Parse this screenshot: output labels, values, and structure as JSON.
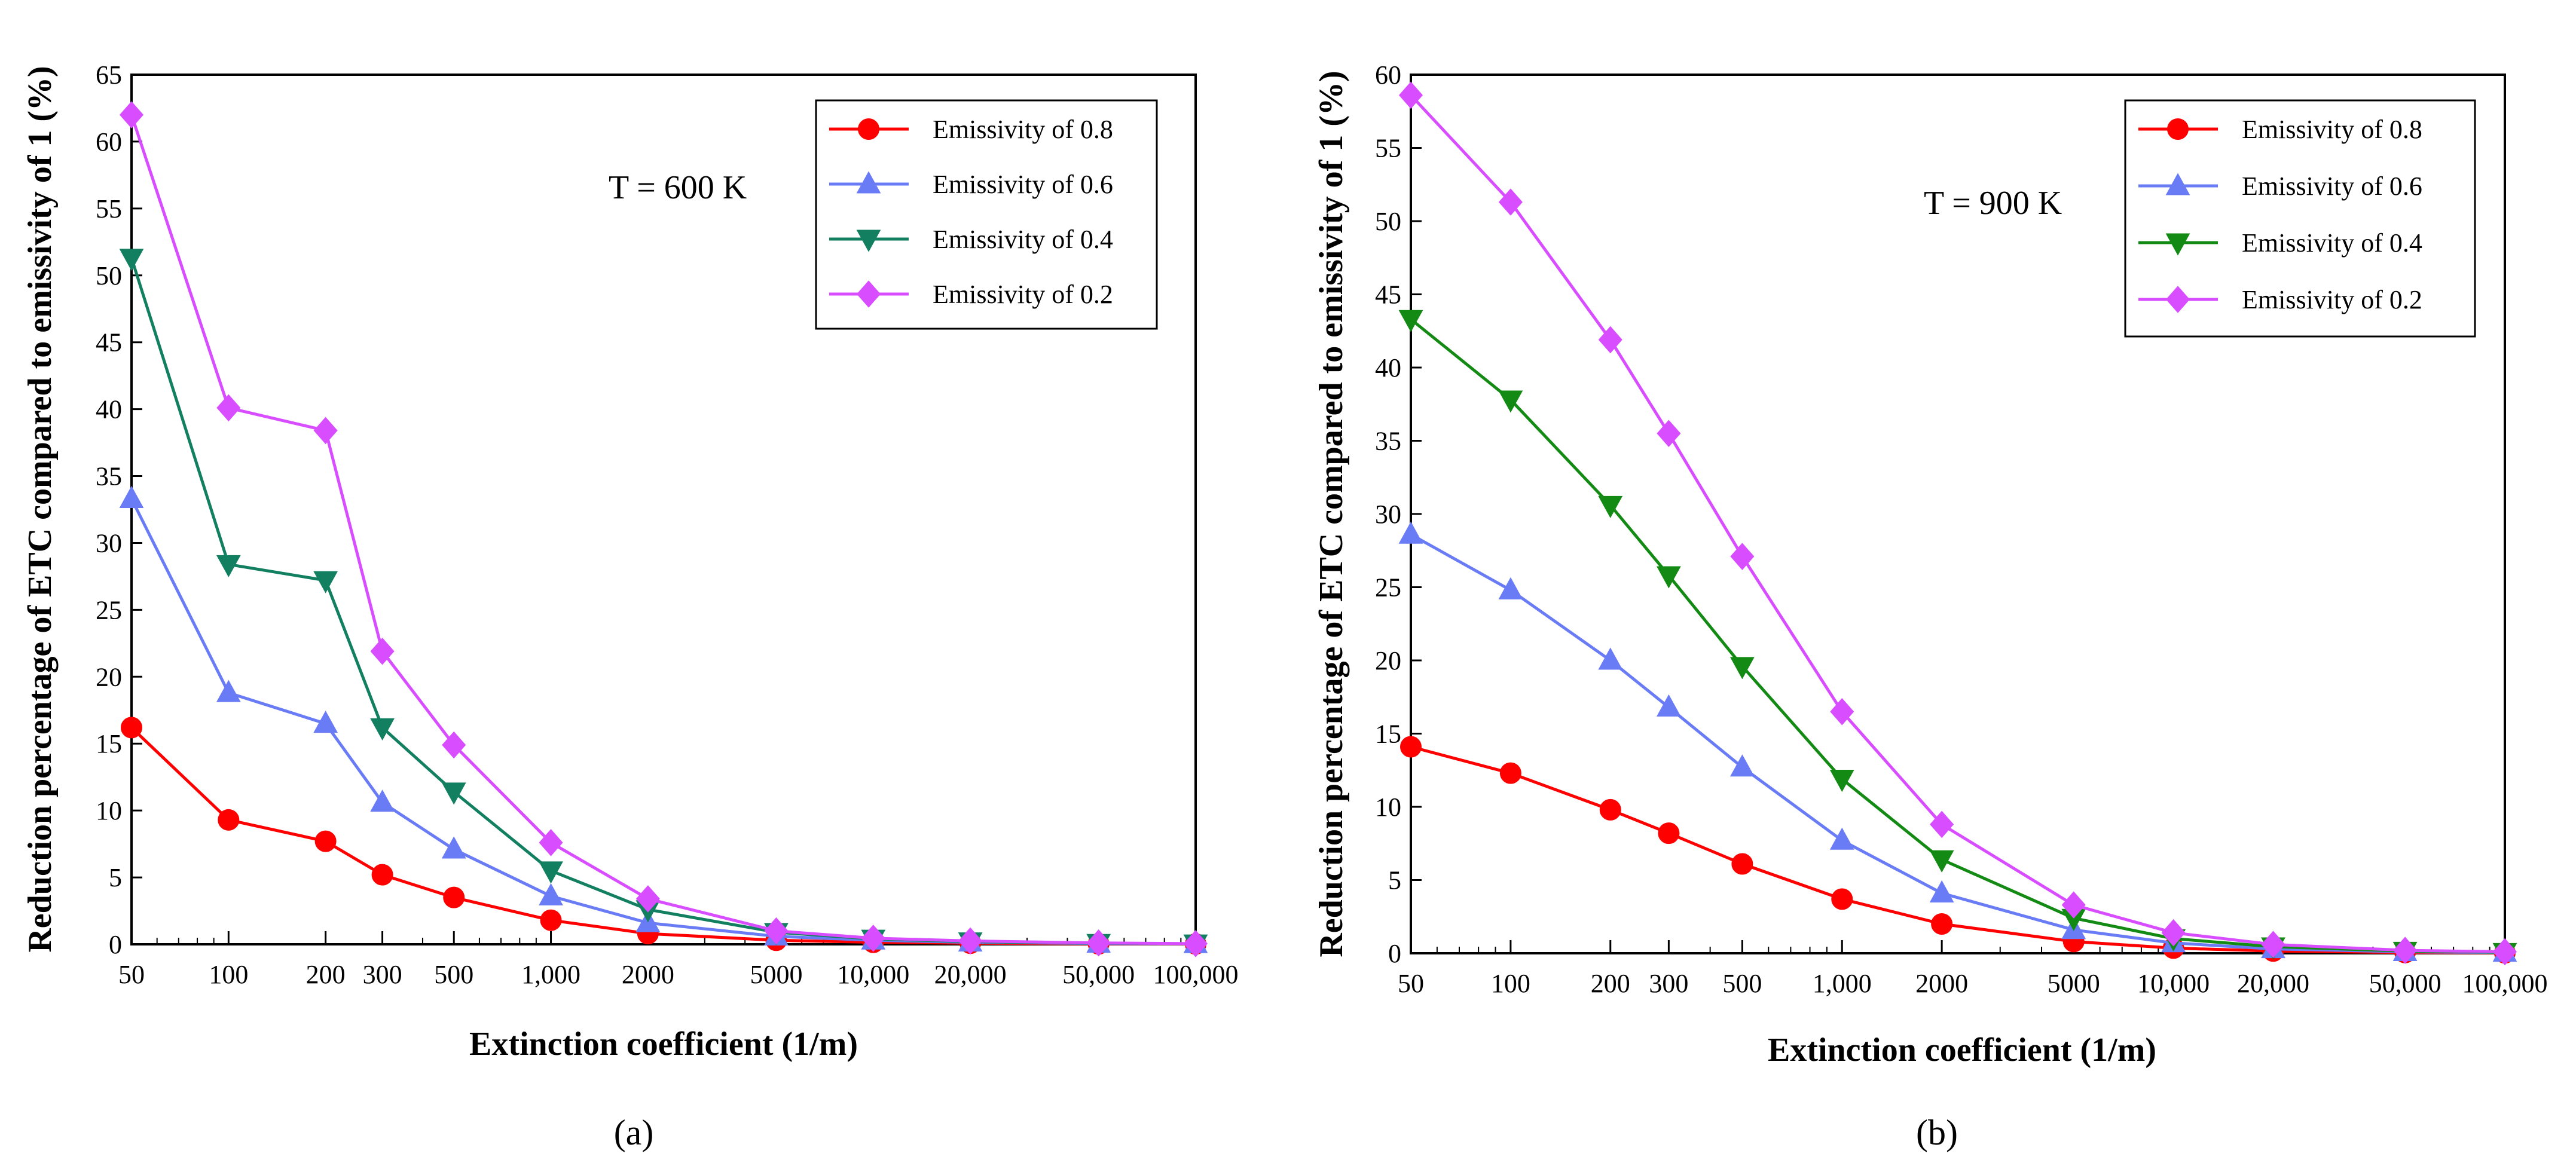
{
  "chart_data": [
    {
      "type": "line",
      "panel_label": "(a)",
      "annotation": "T = 600 K",
      "xlabel": "Extinction coefficient (1/m)",
      "ylabel": "Reduction percentage of ETC compared to emissivity of 1 (%)",
      "xscale": "log",
      "xlim": [
        50,
        100000
      ],
      "ylim": [
        0,
        65
      ],
      "yticks": [
        0,
        5,
        10,
        15,
        20,
        25,
        30,
        35,
        40,
        45,
        50,
        55,
        60,
        65
      ],
      "x": [
        50,
        100,
        200,
        300,
        500,
        1000,
        2000,
        5000,
        10000,
        20000,
        50000,
        100000
      ],
      "x_tick_labels": [
        "50",
        "100",
        "200",
        "300",
        "500",
        "1,000",
        "2000",
        "5000",
        "10,000",
        "20,000",
        "50,000",
        "100,000"
      ],
      "legend_position": "top-right",
      "grid": false,
      "series": [
        {
          "name": "Emissivity of 0.8",
          "color": "#ff0000",
          "marker": "circle",
          "values": [
            16.2,
            9.3,
            7.7,
            5.2,
            3.5,
            1.8,
            0.8,
            0.3,
            0.15,
            0.08,
            0.03,
            0.02
          ]
        },
        {
          "name": "Emissivity of 0.6",
          "color": "#6a7cf5",
          "marker": "triangle-up",
          "values": [
            33.3,
            18.8,
            16.5,
            10.6,
            7.1,
            3.6,
            1.6,
            0.6,
            0.3,
            0.15,
            0.06,
            0.03
          ]
        },
        {
          "name": "Emissivity of 0.4",
          "color": "#128060",
          "marker": "triangle-down",
          "values": [
            51.3,
            28.4,
            27.2,
            16.2,
            11.4,
            5.5,
            2.6,
            0.9,
            0.4,
            0.2,
            0.08,
            0.04
          ]
        },
        {
          "name": "Emissivity of 0.2",
          "color": "#d84dff",
          "marker": "diamond",
          "values": [
            62.0,
            40.1,
            38.4,
            21.9,
            14.9,
            7.6,
            3.4,
            1.0,
            0.45,
            0.25,
            0.1,
            0.05
          ]
        }
      ]
    },
    {
      "type": "line",
      "panel_label": "(b)",
      "annotation": "T = 900 K",
      "xlabel": "Extinction coefficient (1/m)",
      "ylabel": "Reduction percentage of ETC compared to emissivity of 1 (%)",
      "xscale": "log",
      "xlim": [
        50,
        100000
      ],
      "ylim": [
        0,
        60
      ],
      "yticks": [
        0,
        5,
        10,
        15,
        20,
        25,
        30,
        35,
        40,
        45,
        50,
        55,
        60
      ],
      "x": [
        50,
        100,
        200,
        300,
        500,
        1000,
        2000,
        5000,
        10000,
        20000,
        50000,
        100000
      ],
      "x_tick_labels": [
        "50",
        "100",
        "200",
        "300",
        "500",
        "1,000",
        "2000",
        "5000",
        "10,000",
        "20,000",
        "50,000",
        "100,000"
      ],
      "legend_position": "top-right",
      "grid": false,
      "series": [
        {
          "name": "Emissivity of 0.8",
          "color": "#ff0000",
          "marker": "circle",
          "values": [
            14.1,
            12.3,
            9.8,
            8.2,
            6.1,
            3.7,
            2.0,
            0.8,
            0.35,
            0.15,
            0.05,
            0.03
          ]
        },
        {
          "name": "Emissivity of 0.6",
          "color": "#6a7cf5",
          "marker": "triangle-up",
          "values": [
            28.6,
            24.8,
            20.0,
            16.8,
            12.7,
            7.7,
            4.1,
            1.6,
            0.7,
            0.3,
            0.1,
            0.05
          ]
        },
        {
          "name": "Emissivity of 0.4",
          "color": "#138a13",
          "marker": "triangle-down",
          "values": [
            43.3,
            37.8,
            30.6,
            25.8,
            19.6,
            11.9,
            6.4,
            2.4,
            1.0,
            0.45,
            0.15,
            0.07
          ]
        },
        {
          "name": "Emissivity of 0.2",
          "color": "#d84dff",
          "marker": "diamond",
          "values": [
            58.6,
            51.3,
            41.9,
            35.5,
            27.1,
            16.5,
            8.8,
            3.3,
            1.4,
            0.6,
            0.2,
            0.1
          ]
        }
      ]
    }
  ]
}
